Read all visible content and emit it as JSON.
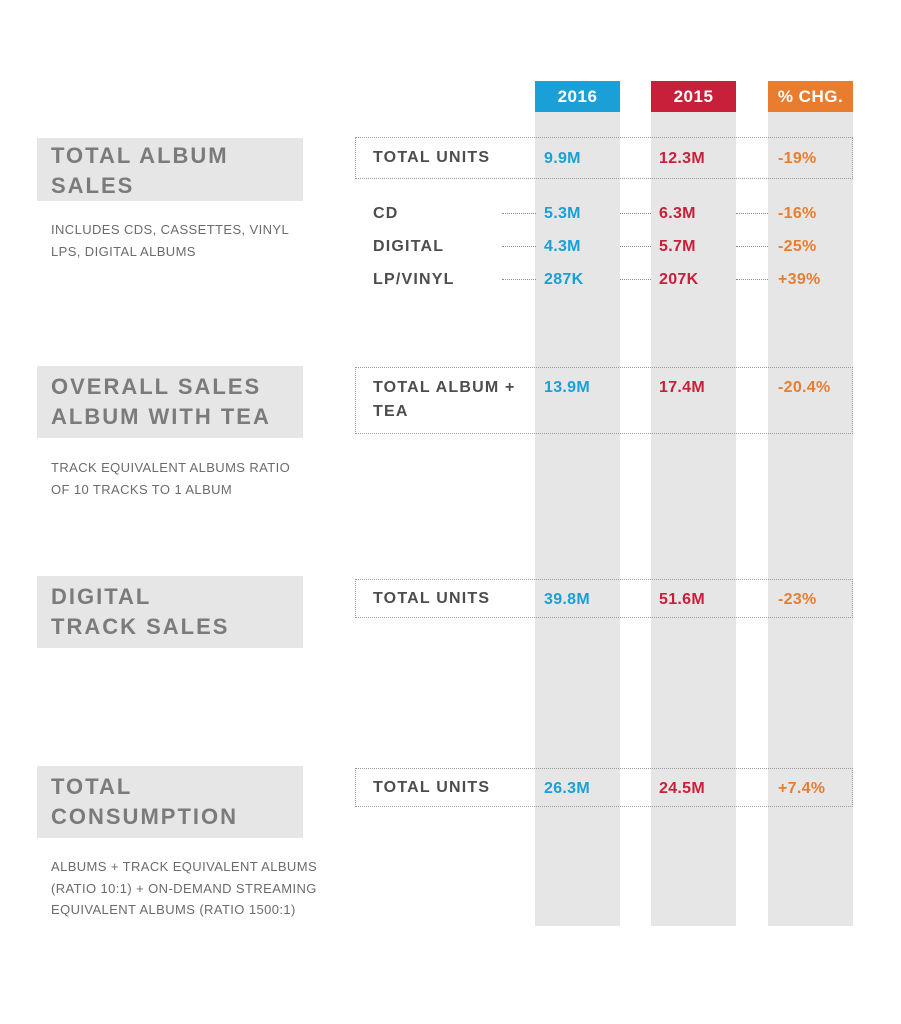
{
  "chart_data": {
    "type": "table",
    "columns": [
      {
        "label": "2016",
        "color": "#1aa0d6"
      },
      {
        "label": "2015",
        "color": "#c8203a"
      },
      {
        "label": "% CHG.",
        "color": "#e87d2f"
      }
    ],
    "sections": [
      {
        "title": "TOTAL ALBUM SALES",
        "description": "INCLUDES CDS, CASSETTES, VINYL LPS, DIGITAL ALBUMS",
        "total": {
          "label": "TOTAL UNITS",
          "values": [
            "9.9M",
            "12.3M",
            "-19%"
          ]
        },
        "rows": [
          {
            "label": "CD",
            "values": [
              "5.3M",
              "6.3M",
              "-16%"
            ]
          },
          {
            "label": "DIGITAL",
            "values": [
              "4.3M",
              "5.7M",
              "-25%"
            ]
          },
          {
            "label": "LP/VINYL",
            "values": [
              "287K",
              "207K",
              "+39%"
            ]
          }
        ]
      },
      {
        "title": "OVERALL SALES ALBUM WITH TEA",
        "description": "TRACK EQUIVALENT ALBUMS RATIO OF 10 TRACKS TO 1 ALBUM",
        "total": {
          "label": "TOTAL ALBUM + TEA",
          "values": [
            "13.9M",
            "17.4M",
            "-20.4%"
          ]
        }
      },
      {
        "title": "DIGITAL TRACK SALES",
        "description": "",
        "total": {
          "label": "TOTAL UNITS",
          "values": [
            "39.8M",
            "51.6M",
            "-23%"
          ]
        }
      },
      {
        "title": "TOTAL CONSUMPTION",
        "description": "ALBUMS + TRACK EQUIVALENT ALBUMS (RATIO 10:1) + ON-DEMAND STREAMING EQUIVALENT ALBUMS (RATIO 1500:1)",
        "total": {
          "label": "TOTAL UNITS",
          "values": [
            "26.3M",
            "24.5M",
            "+7.4%"
          ]
        }
      }
    ]
  }
}
